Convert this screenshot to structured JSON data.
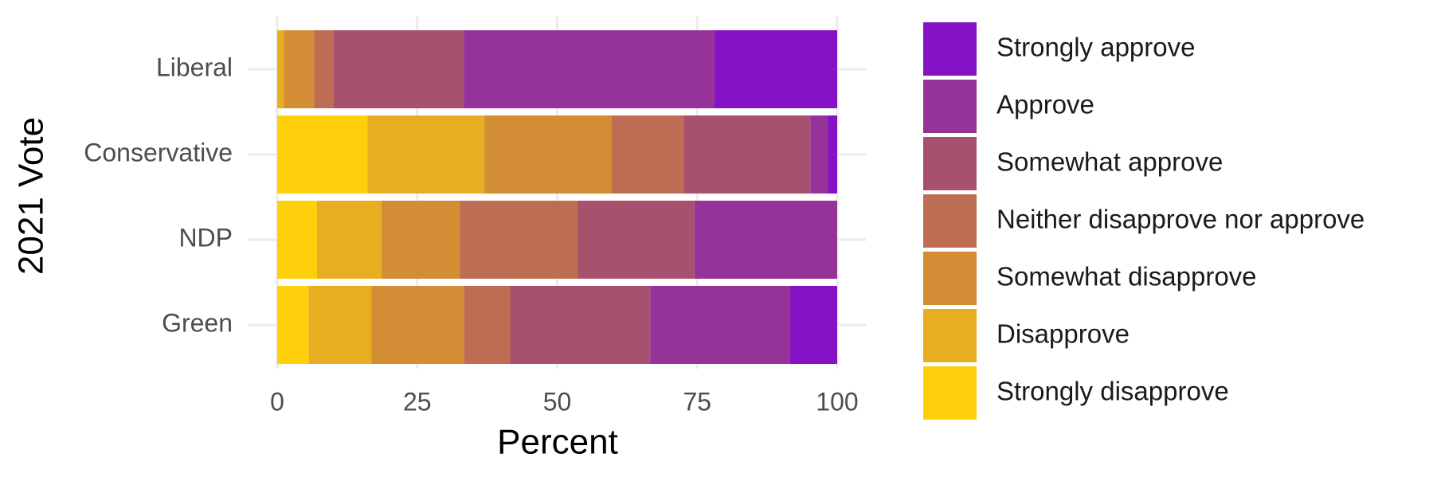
{
  "chart_data": {
    "type": "stacked_barh",
    "x_label": "Percent",
    "y_label": "2021 Vote",
    "categories": [
      "Liberal",
      "Conservative",
      "NDP",
      "Green"
    ],
    "series": [
      {
        "name": "Strongly disapprove",
        "color": "#fdd00b",
        "values": [
          0,
          16.1,
          7.1,
          5.6
        ]
      },
      {
        "name": "Disapprove",
        "color": "#e8ae21",
        "values": [
          1.2,
          20.9,
          11.5,
          11.2
        ]
      },
      {
        "name": "Somewhat disapprove",
        "color": "#d28d35",
        "values": [
          5.4,
          22.7,
          14.0,
          16.6
        ]
      },
      {
        "name": "Neither disapprove nor approve",
        "color": "#bd6e52",
        "values": [
          3.5,
          12.9,
          21.1,
          8.2
        ]
      },
      {
        "name": "Somewhat approve",
        "color": "#a8516e",
        "values": [
          23.2,
          22.6,
          20.8,
          25.0
        ]
      },
      {
        "name": "Approve",
        "color": "#963399",
        "values": [
          44.8,
          3.1,
          25.5,
          25.0
        ]
      },
      {
        "name": "Strongly approve",
        "color": "#8612c6",
        "values": [
          21.9,
          1.7,
          0,
          8.4
        ]
      }
    ],
    "xlim": [
      0,
      100
    ],
    "xticks": [
      0,
      25,
      50,
      75,
      100
    ],
    "grid": true,
    "legend": "right"
  }
}
